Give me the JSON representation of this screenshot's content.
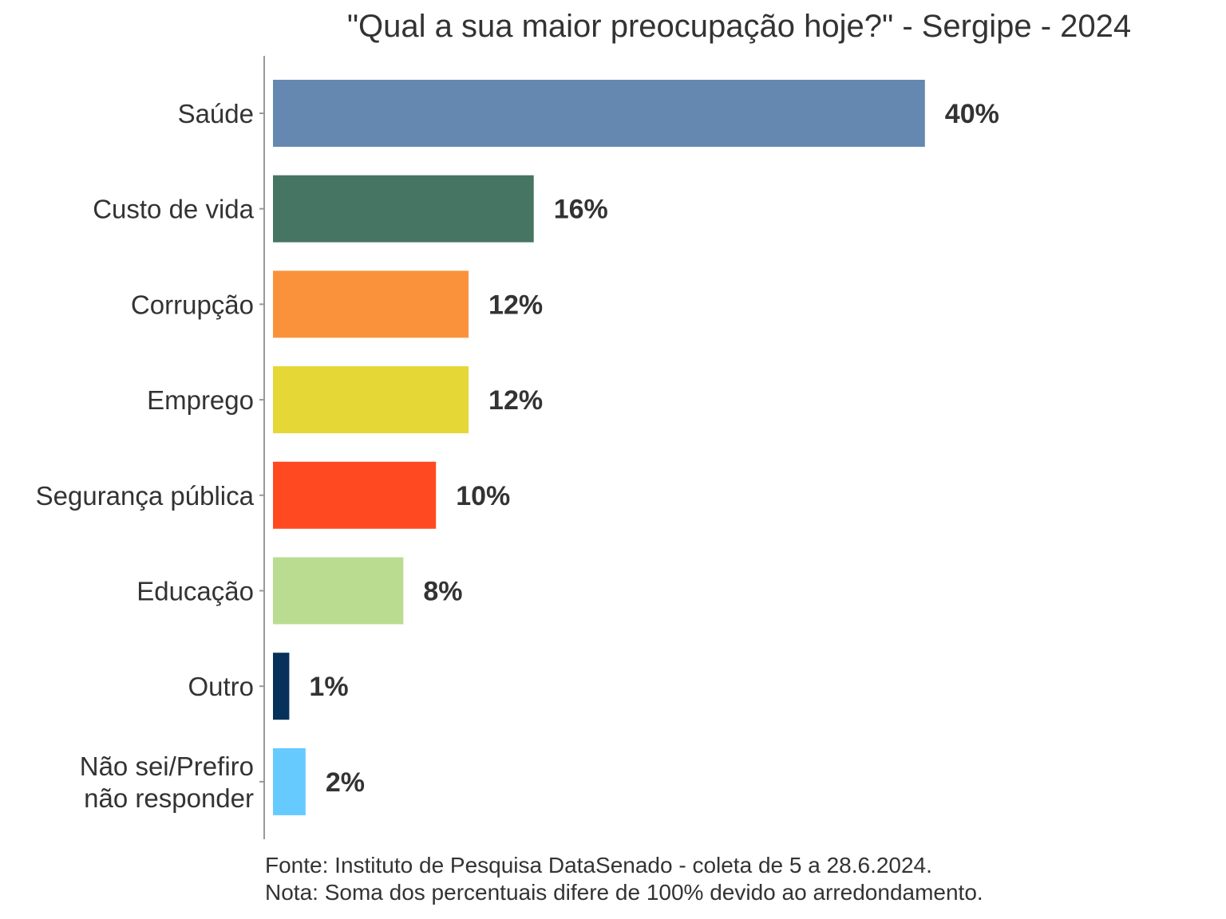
{
  "chart_data": {
    "type": "bar",
    "orientation": "horizontal",
    "title": "\"Qual a sua maior preocupação hoje?\" - Sergipe - 2024",
    "categories": [
      "Saúde",
      "Custo de vida",
      "Corrupção",
      "Emprego",
      "Segurança pública",
      "Educação",
      "Outro",
      "Não sei/Prefiro não responder"
    ],
    "category_lines": [
      [
        "Saúde"
      ],
      [
        "Custo de vida"
      ],
      [
        "Corrupção"
      ],
      [
        "Emprego"
      ],
      [
        "Segurança pública"
      ],
      [
        "Educação"
      ],
      [
        "Outro"
      ],
      [
        "Não sei/Prefiro",
        "não responder"
      ]
    ],
    "values": [
      40,
      16,
      12,
      12,
      10,
      8,
      1,
      2
    ],
    "value_labels": [
      "40%",
      "16%",
      "12%",
      "12%",
      "10%",
      "8%",
      "1%",
      "2%"
    ],
    "colors": [
      "#6488B0",
      "#467563",
      "#FA923C",
      "#E5D735",
      "#FF4A21",
      "#BADC91",
      "#05315A",
      "#66CAFF"
    ],
    "xlim": [
      0,
      40
    ],
    "grid": false,
    "legend": "none"
  },
  "footer": {
    "source": "Fonte: Instituto de Pesquisa DataSenado - coleta de 5 a 28.6.2024.",
    "note": "Nota: Soma dos percentuais difere de 100% devido ao arredondamento."
  }
}
